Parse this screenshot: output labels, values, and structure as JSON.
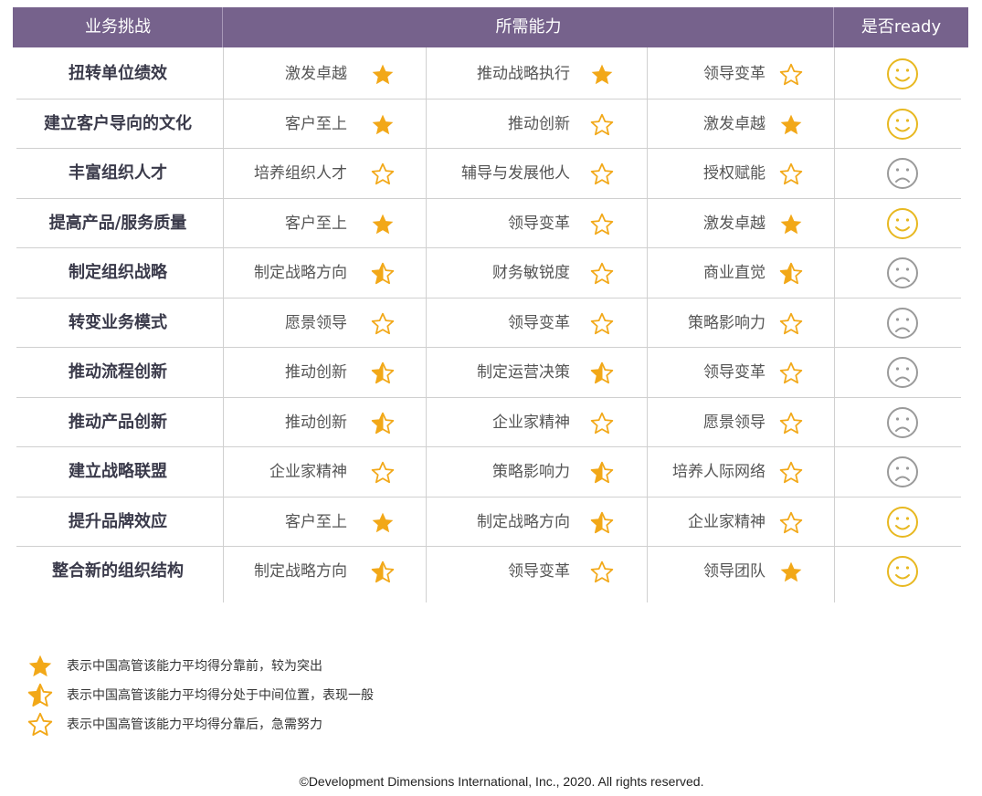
{
  "header": {
    "challenge": "业务挑战",
    "capabilities": "所需能力",
    "ready": "是否ready"
  },
  "colors": {
    "header_bg": "#76628c",
    "star": "#f2a818",
    "happy": "#e8b820",
    "sad": "#9a9a9a"
  },
  "rows": [
    {
      "challenge": "扭转单位绩效",
      "caps": [
        {
          "name": "激发卓越",
          "rating": "full"
        },
        {
          "name": "推动战略执行",
          "rating": "full"
        },
        {
          "name": "领导变革",
          "rating": "empty"
        }
      ],
      "ready": "happy"
    },
    {
      "challenge": "建立客户导向的文化",
      "caps": [
        {
          "name": "客户至上",
          "rating": "full"
        },
        {
          "name": "推动创新",
          "rating": "empty"
        },
        {
          "name": "激发卓越",
          "rating": "full"
        }
      ],
      "ready": "happy"
    },
    {
      "challenge": "丰富组织人才",
      "caps": [
        {
          "name": "培养组织人才",
          "rating": "empty"
        },
        {
          "name": "辅导与发展他人",
          "rating": "empty"
        },
        {
          "name": "授权赋能",
          "rating": "empty"
        }
      ],
      "ready": "sad"
    },
    {
      "challenge": "提高产品/服务质量",
      "caps": [
        {
          "name": "客户至上",
          "rating": "full"
        },
        {
          "name": "领导变革",
          "rating": "empty"
        },
        {
          "name": "激发卓越",
          "rating": "full"
        }
      ],
      "ready": "happy"
    },
    {
      "challenge": "制定组织战略",
      "caps": [
        {
          "name": "制定战略方向",
          "rating": "half"
        },
        {
          "name": "财务敏锐度",
          "rating": "empty"
        },
        {
          "name": "商业直觉",
          "rating": "half"
        }
      ],
      "ready": "sad"
    },
    {
      "challenge": "转变业务模式",
      "caps": [
        {
          "name": "愿景领导",
          "rating": "empty"
        },
        {
          "name": "领导变革",
          "rating": "empty"
        },
        {
          "name": "策略影响力",
          "rating": "empty"
        }
      ],
      "ready": "sad"
    },
    {
      "challenge": "推动流程创新",
      "caps": [
        {
          "name": "推动创新",
          "rating": "half"
        },
        {
          "name": "制定运营决策",
          "rating": "half"
        },
        {
          "name": "领导变革",
          "rating": "empty"
        }
      ],
      "ready": "sad"
    },
    {
      "challenge": "推动产品创新",
      "caps": [
        {
          "name": "推动创新",
          "rating": "half"
        },
        {
          "name": "企业家精神",
          "rating": "empty"
        },
        {
          "name": "愿景领导",
          "rating": "empty"
        }
      ],
      "ready": "sad"
    },
    {
      "challenge": "建立战略联盟",
      "caps": [
        {
          "name": "企业家精神",
          "rating": "empty"
        },
        {
          "name": "策略影响力",
          "rating": "half"
        },
        {
          "name": "培养人际网络",
          "rating": "empty"
        }
      ],
      "ready": "sad"
    },
    {
      "challenge": "提升品牌效应",
      "caps": [
        {
          "name": "客户至上",
          "rating": "full"
        },
        {
          "name": "制定战略方向",
          "rating": "half"
        },
        {
          "name": "企业家精神",
          "rating": "empty"
        }
      ],
      "ready": "happy"
    },
    {
      "challenge": "整合新的组织结构",
      "caps": [
        {
          "name": "制定战略方向",
          "rating": "half"
        },
        {
          "name": "领导变革",
          "rating": "empty"
        },
        {
          "name": "领导团队",
          "rating": "full"
        }
      ],
      "ready": "happy"
    }
  ],
  "legend": [
    {
      "rating": "full",
      "text": "表示中国高管该能力平均得分靠前，较为突出"
    },
    {
      "rating": "half",
      "text": "表示中国高管该能力平均得分处于中间位置，表现一般"
    },
    {
      "rating": "empty",
      "text": "表示中国高管该能力平均得分靠后，急需努力"
    }
  ],
  "footer": "©Development Dimensions International, Inc., 2020. All rights reserved."
}
